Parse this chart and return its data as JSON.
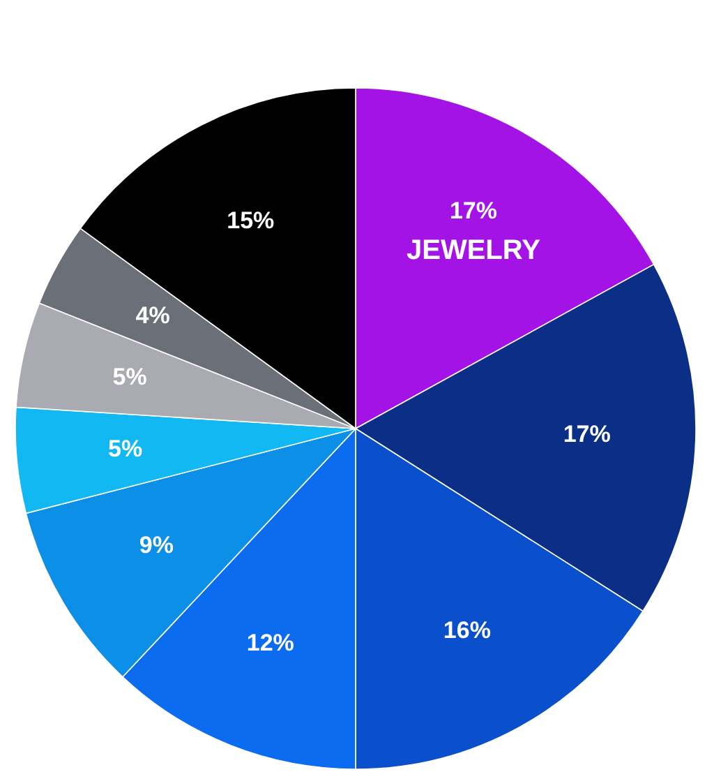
{
  "chart_data": {
    "type": "pie",
    "categories": [
      "JEWELRY",
      null,
      null,
      null,
      null,
      null,
      null,
      null,
      null
    ],
    "values": [
      17,
      17,
      16,
      12,
      9,
      5,
      5,
      4,
      15
    ],
    "value_labels": [
      "17%",
      "17%",
      "16%",
      "12%",
      "9%",
      "5%",
      "5%",
      "4%",
      "15%"
    ],
    "colors": [
      "#a313e6",
      "#0b2f86",
      "#0a4fcc",
      "#0b6cf0",
      "#0c8fe6",
      "#12b8f2",
      "#a9aab2",
      "#6b6f78",
      "#000000"
    ]
  }
}
